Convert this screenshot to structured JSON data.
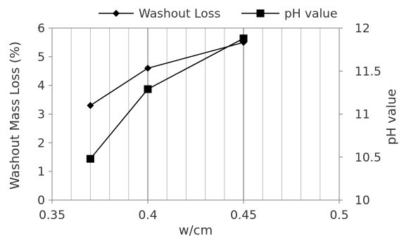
{
  "chart_data": {
    "type": "line",
    "xlabel": "w/cm",
    "ylabel_left": "Washout Mass Loss  (%)",
    "ylabel_right": "pH value",
    "xlim": [
      0.35,
      0.5
    ],
    "ylim_left": [
      0,
      6
    ],
    "ylim_right": [
      10,
      12
    ],
    "x_ticks": [
      "0.35",
      "0.4",
      "0.45",
      "0.5"
    ],
    "y_left_ticks": [
      "0",
      "1",
      "2",
      "3",
      "4",
      "5",
      "6"
    ],
    "y_right_ticks": [
      "10",
      "10.5",
      "11",
      "11.5",
      "12"
    ],
    "grid": "vertical",
    "legend_position": "top",
    "series": [
      {
        "name": "Washout  Loss",
        "axis": "left",
        "marker": "diamond",
        "x": [
          0.37,
          0.4,
          0.45
        ],
        "y": [
          3.3,
          4.6,
          5.5
        ]
      },
      {
        "name": "pH value",
        "axis": "right",
        "marker": "square",
        "x": [
          0.37,
          0.4,
          0.45
        ],
        "y": [
          10.48,
          11.29,
          11.88
        ]
      }
    ],
    "colors": {
      "line": "#000000",
      "grid": "#bfbfbf",
      "axis": "#808080",
      "text": "#333333"
    }
  }
}
